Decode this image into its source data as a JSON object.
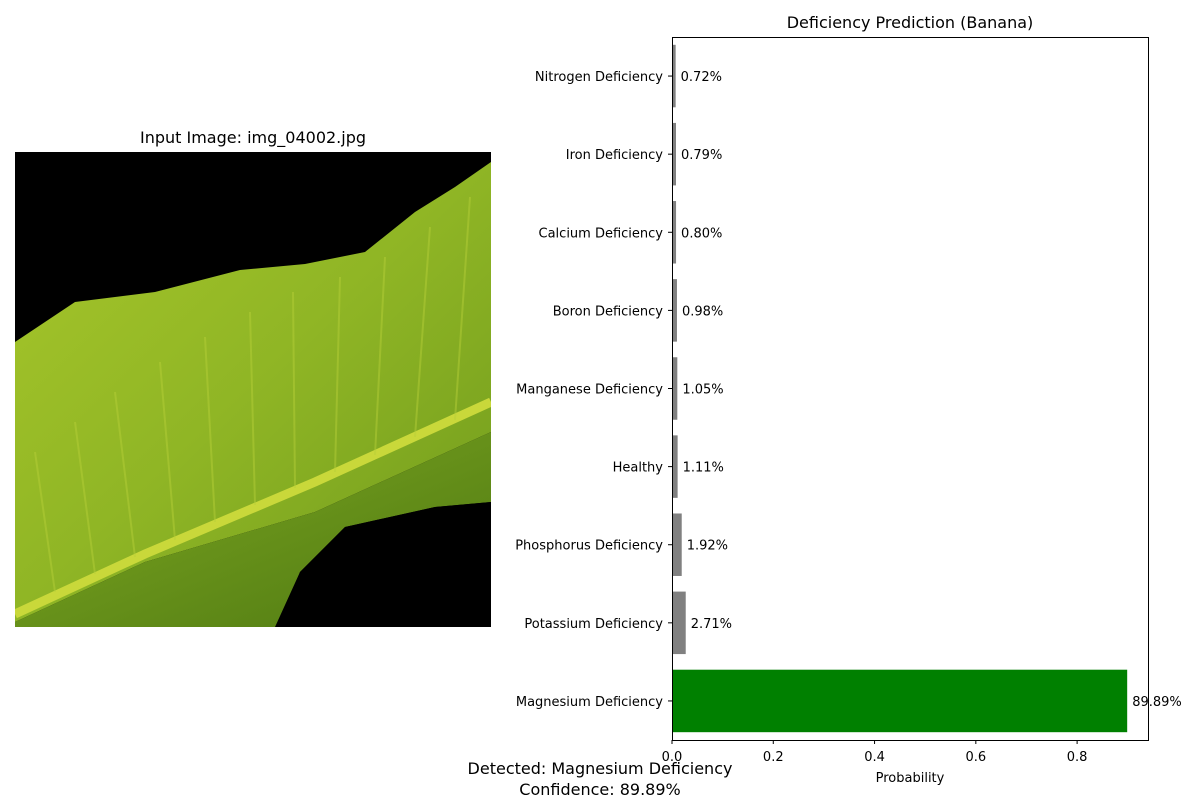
{
  "image_panel": {
    "title": "Input Image: img_04002.jpg"
  },
  "chart_data": {
    "type": "bar",
    "orientation": "horizontal",
    "title": "Deficiency Prediction (Banana)",
    "xlabel": "Probability",
    "ylabel": "",
    "xlim": [
      0,
      0.94
    ],
    "xticks": [
      0.0,
      0.2,
      0.4,
      0.6,
      0.8
    ],
    "xtick_labels": [
      "0.0",
      "0.2",
      "0.4",
      "0.6",
      "0.8"
    ],
    "grid": false,
    "categories": [
      "Magnesium Deficiency",
      "Potassium Deficiency",
      "Phosphorus Deficiency",
      "Healthy",
      "Manganese Deficiency",
      "Boron Deficiency",
      "Calcium Deficiency",
      "Iron Deficiency",
      "Nitrogen Deficiency"
    ],
    "values": [
      0.8989,
      0.0271,
      0.0192,
      0.0111,
      0.0105,
      0.0098,
      0.008,
      0.0079,
      0.0072
    ],
    "data_labels": [
      "89.89%",
      "2.71%",
      "1.92%",
      "1.11%",
      "1.05%",
      "0.98%",
      "0.80%",
      "0.79%",
      "0.72%"
    ],
    "colors": [
      "#008000",
      "#808080",
      "#808080",
      "#808080",
      "#808080",
      "#808080",
      "#808080",
      "#808080",
      "#808080"
    ]
  },
  "result": {
    "detected": "Detected: Magnesium Deficiency",
    "confidence": "Confidence: 89.89%"
  }
}
